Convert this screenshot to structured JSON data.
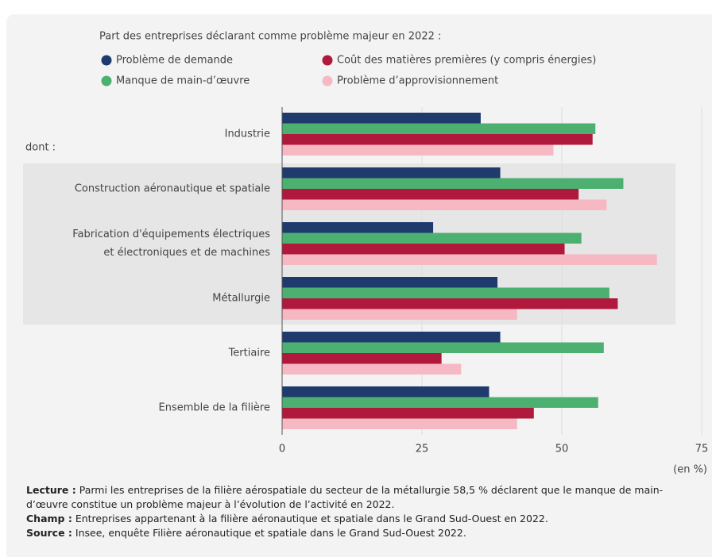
{
  "chart_data": {
    "type": "bar",
    "orientation": "horizontal",
    "subtitle": "Part des entreprises déclarant comme problème majeur en 2022 :",
    "group_label": "dont :",
    "unit_label": "(en %)",
    "categories": [
      "Industrie",
      "Construction aéronautique et spatiale",
      "Fabrication d'équipements électriques\net électroniques et de machines",
      "Métallurgie",
      "Tertiaire",
      "Ensemble de la filière"
    ],
    "series": [
      {
        "name": "Problème de demande",
        "color": "#1f3b6e",
        "values": [
          35.5,
          39,
          27,
          38.5,
          39,
          37
        ]
      },
      {
        "name": "Manque de main-d’œuvre",
        "color": "#4cb071",
        "values": [
          56,
          61,
          53.5,
          58.5,
          57.5,
          56.5
        ]
      },
      {
        "name": "Coût des matières premières (y compris énergies)",
        "color": "#b0183c",
        "values": [
          55.5,
          53,
          50.5,
          60,
          28.5,
          45
        ]
      },
      {
        "name": "Problème d’approvisionnement",
        "color": "#f6b8c3",
        "values": [
          48.5,
          58,
          67,
          42,
          32,
          42
        ]
      }
    ],
    "xlim": [
      0,
      75
    ],
    "xticks": [
      0,
      25,
      50,
      75
    ],
    "grid": true,
    "notes": [
      {
        "label": "Lecture :",
        "text": "Parmi les entreprises de la filière aérospatiale du secteur de la métallurgie 58,5 % déclarent que le manque de main-d’œuvre constitue un problème majeur à l’évolution de l’activité en 2022."
      },
      {
        "label": "Champ :",
        "text": "Entreprises appartenant à la filière aéronautique et spatiale dans le Grand Sud-Ouest en 2022."
      },
      {
        "label": "Source :",
        "text": "Insee, enquête Filière aéronautique et spatiale dans le Grand Sud-Ouest 2022."
      }
    ]
  }
}
